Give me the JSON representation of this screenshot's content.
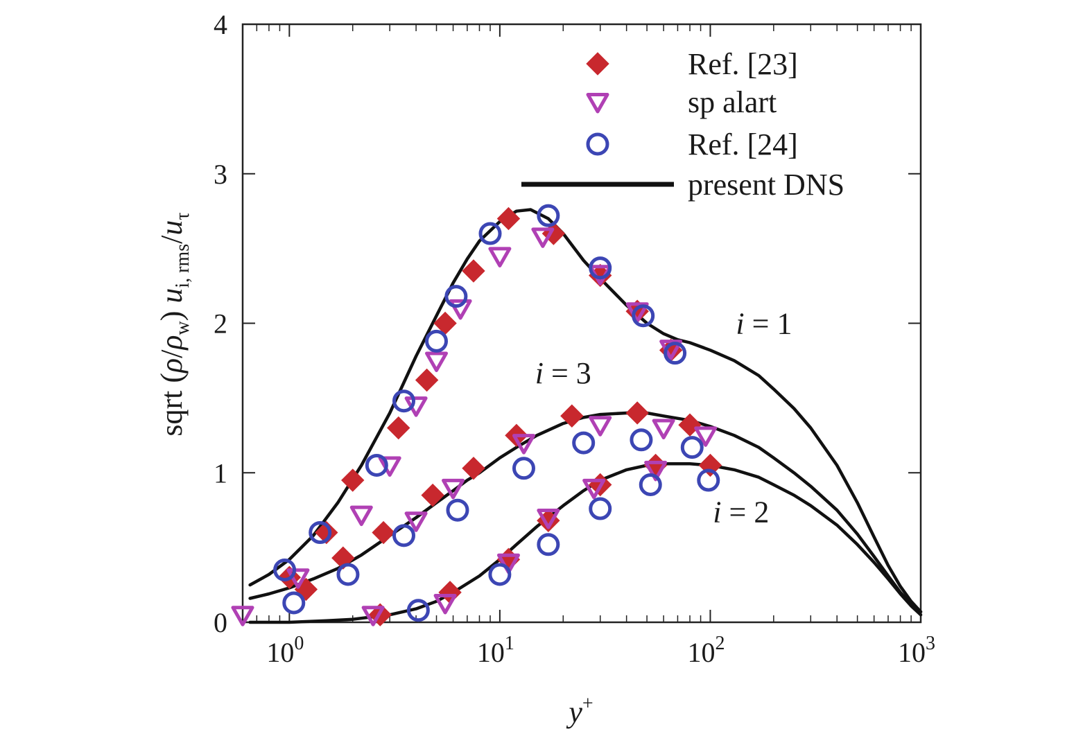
{
  "chart_data": {
    "type": "scatter",
    "xscale": "log",
    "xlim": [
      0.6,
      1000
    ],
    "ylim": [
      0,
      4
    ],
    "x_ticks": [
      {
        "value": 1,
        "base": "10",
        "exp": "0"
      },
      {
        "value": 10,
        "base": "10",
        "exp": "1"
      },
      {
        "value": 100,
        "base": "10",
        "exp": "2"
      },
      {
        "value": 1000,
        "base": "10",
        "exp": "3"
      }
    ],
    "y_ticks": [
      {
        "value": 0,
        "label": "0"
      },
      {
        "value": 1,
        "label": "1"
      },
      {
        "value": 2,
        "label": "2"
      },
      {
        "value": 3,
        "label": "3"
      },
      {
        "value": 4,
        "label": "4"
      }
    ],
    "xlabel": {
      "main": "y",
      "sup": "+"
    },
    "ylabel": {
      "prefix": "sqrt (",
      "rho": "ρ",
      "slash": "/",
      "rho_w": "ρ",
      "w_sub": "w",
      "close": ") ",
      "u": "u",
      "u_sub": "i, rms",
      "slash2": "/",
      "u_tau": "u",
      "tau_sub": "τ"
    },
    "legend": {
      "position": "top-center",
      "entries": [
        {
          "label": "Ref. [23]",
          "marker": "diamond-filled",
          "color": "#c8282e"
        },
        {
          "label": "sp alart",
          "marker": "triangle-down-open",
          "color": "#b040b4"
        },
        {
          "label": "Ref. [24]",
          "marker": "circle-open",
          "color": "#3c46b4"
        },
        {
          "label": "present DNS",
          "marker": "line",
          "color": "#111111"
        }
      ]
    },
    "curve_labels": [
      {
        "text": "i = 1",
        "i": "i",
        "rest": " = 1",
        "x": 180,
        "y": 1.93
      },
      {
        "text": "i = 3",
        "i": "i",
        "rest": " = 3",
        "x": 20,
        "y": 1.6
      },
      {
        "text": "i = 2",
        "i": "i",
        "rest": " = 2",
        "x": 140,
        "y": 0.67
      }
    ],
    "series": [
      {
        "name": "present DNS",
        "style": "line",
        "color": "#111111",
        "curves": [
          {
            "component": "i = 1",
            "x": [
              0.65,
              0.8,
              1,
              1.3,
              1.7,
              2.2,
              3,
              4,
              5,
              6,
              7,
              8,
              10,
              12,
              14,
              17,
              20,
              25,
              30,
              40,
              50,
              60,
              70,
              80,
              100,
              130,
              170,
              200,
              250,
              300,
              400,
              500,
              600,
              700,
              800,
              900,
              1000
            ],
            "y": [
              0.25,
              0.32,
              0.42,
              0.58,
              0.8,
              1.05,
              1.4,
              1.78,
              2.05,
              2.27,
              2.43,
              2.55,
              2.68,
              2.75,
              2.76,
              2.7,
              2.6,
              2.42,
              2.3,
              2.12,
              2.0,
              1.93,
              1.89,
              1.87,
              1.82,
              1.75,
              1.65,
              1.56,
              1.43,
              1.3,
              1.05,
              0.8,
              0.57,
              0.38,
              0.24,
              0.14,
              0.07
            ]
          },
          {
            "component": "i = 3",
            "x": [
              0.65,
              0.8,
              1,
              1.3,
              1.7,
              2.2,
              3,
              4,
              5,
              6,
              7,
              8,
              10,
              12,
              15,
              20,
              25,
              30,
              40,
              50,
              60,
              80,
              100,
              130,
              170,
              200,
              250,
              300,
              400,
              500,
              600,
              700,
              800,
              900,
              1000
            ],
            "y": [
              0.16,
              0.19,
              0.23,
              0.29,
              0.36,
              0.45,
              0.58,
              0.7,
              0.8,
              0.88,
              0.95,
              1.0,
              1.1,
              1.17,
              1.25,
              1.33,
              1.37,
              1.39,
              1.4,
              1.4,
              1.38,
              1.35,
              1.31,
              1.25,
              1.17,
              1.1,
              1.0,
              0.91,
              0.75,
              0.59,
              0.44,
              0.31,
              0.2,
              0.12,
              0.07
            ]
          },
          {
            "component": "i = 2",
            "x": [
              0.65,
              1,
              1.5,
              2,
              3,
              4,
              5,
              6,
              8,
              10,
              12,
              15,
              20,
              25,
              30,
              40,
              50,
              60,
              80,
              100,
              130,
              170,
              200,
              250,
              300,
              400,
              500,
              600,
              700,
              800,
              900,
              1000
            ],
            "y": [
              0.0,
              0.0,
              0.01,
              0.02,
              0.05,
              0.09,
              0.14,
              0.2,
              0.31,
              0.42,
              0.52,
              0.64,
              0.78,
              0.88,
              0.95,
              1.02,
              1.05,
              1.06,
              1.06,
              1.05,
              1.02,
              0.97,
              0.92,
              0.85,
              0.78,
              0.65,
              0.52,
              0.4,
              0.29,
              0.19,
              0.11,
              0.05
            ]
          }
        ]
      },
      {
        "name": "Ref. [23]",
        "marker": "diamond-filled",
        "color": "#c8282e",
        "points": [
          {
            "x": 1.0,
            "y": 0.3
          },
          {
            "x": 1.5,
            "y": 0.6
          },
          {
            "x": 2.0,
            "y": 0.95
          },
          {
            "x": 3.3,
            "y": 1.3
          },
          {
            "x": 4.5,
            "y": 1.62
          },
          {
            "x": 5.5,
            "y": 2.0
          },
          {
            "x": 7.5,
            "y": 2.35
          },
          {
            "x": 11,
            "y": 2.7
          },
          {
            "x": 18,
            "y": 2.6
          },
          {
            "x": 30,
            "y": 2.32
          },
          {
            "x": 45,
            "y": 2.08
          },
          {
            "x": 65,
            "y": 1.82
          },
          {
            "x": 1.2,
            "y": 0.22
          },
          {
            "x": 1.8,
            "y": 0.43
          },
          {
            "x": 2.8,
            "y": 0.6
          },
          {
            "x": 4.8,
            "y": 0.85
          },
          {
            "x": 7.5,
            "y": 1.03
          },
          {
            "x": 12,
            "y": 1.25
          },
          {
            "x": 22,
            "y": 1.38
          },
          {
            "x": 45,
            "y": 1.4
          },
          {
            "x": 80,
            "y": 1.32
          },
          {
            "x": 100,
            "y": 1.05
          },
          {
            "x": 2.7,
            "y": 0.05
          },
          {
            "x": 5.8,
            "y": 0.2
          },
          {
            "x": 11,
            "y": 0.42
          },
          {
            "x": 17,
            "y": 0.68
          },
          {
            "x": 30,
            "y": 0.92
          },
          {
            "x": 55,
            "y": 1.05
          }
        ]
      },
      {
        "name": "sp alart",
        "marker": "triangle-down-open",
        "color": "#b040b4",
        "points": [
          {
            "x": 0.6,
            "y": 0.05
          },
          {
            "x": 1.1,
            "y": 0.3
          },
          {
            "x": 2.2,
            "y": 0.72
          },
          {
            "x": 3.0,
            "y": 1.05
          },
          {
            "x": 4.0,
            "y": 1.45
          },
          {
            "x": 5.0,
            "y": 1.75
          },
          {
            "x": 6.5,
            "y": 2.1
          },
          {
            "x": 10,
            "y": 2.45
          },
          {
            "x": 16,
            "y": 2.58
          },
          {
            "x": 30,
            "y": 2.33
          },
          {
            "x": 45,
            "y": 2.08
          },
          {
            "x": 65,
            "y": 1.83
          },
          {
            "x": 4.0,
            "y": 0.68
          },
          {
            "x": 6.0,
            "y": 0.9
          },
          {
            "x": 13,
            "y": 1.2
          },
          {
            "x": 30,
            "y": 1.32
          },
          {
            "x": 60,
            "y": 1.3
          },
          {
            "x": 95,
            "y": 1.25
          },
          {
            "x": 2.5,
            "y": 0.05
          },
          {
            "x": 5.5,
            "y": 0.13
          },
          {
            "x": 11,
            "y": 0.4
          },
          {
            "x": 17,
            "y": 0.7
          },
          {
            "x": 28,
            "y": 0.9
          },
          {
            "x": 55,
            "y": 1.02
          }
        ]
      },
      {
        "name": "Ref. [24]",
        "marker": "circle-open",
        "color": "#3c46b4",
        "points": [
          {
            "x": 0.95,
            "y": 0.35
          },
          {
            "x": 1.4,
            "y": 0.6
          },
          {
            "x": 2.6,
            "y": 1.05
          },
          {
            "x": 3.5,
            "y": 1.48
          },
          {
            "x": 5.0,
            "y": 1.88
          },
          {
            "x": 6.2,
            "y": 2.18
          },
          {
            "x": 9.0,
            "y": 2.6
          },
          {
            "x": 17,
            "y": 2.72
          },
          {
            "x": 30,
            "y": 2.37
          },
          {
            "x": 48,
            "y": 2.05
          },
          {
            "x": 68,
            "y": 1.8
          },
          {
            "x": 1.05,
            "y": 0.13
          },
          {
            "x": 1.9,
            "y": 0.32
          },
          {
            "x": 3.5,
            "y": 0.58
          },
          {
            "x": 6.3,
            "y": 0.75
          },
          {
            "x": 13,
            "y": 1.03
          },
          {
            "x": 25,
            "y": 1.2
          },
          {
            "x": 47,
            "y": 1.22
          },
          {
            "x": 82,
            "y": 1.17
          },
          {
            "x": 4.1,
            "y": 0.08
          },
          {
            "x": 10,
            "y": 0.32
          },
          {
            "x": 17,
            "y": 0.52
          },
          {
            "x": 30,
            "y": 0.76
          },
          {
            "x": 52,
            "y": 0.92
          },
          {
            "x": 98,
            "y": 0.95
          }
        ]
      }
    ]
  }
}
